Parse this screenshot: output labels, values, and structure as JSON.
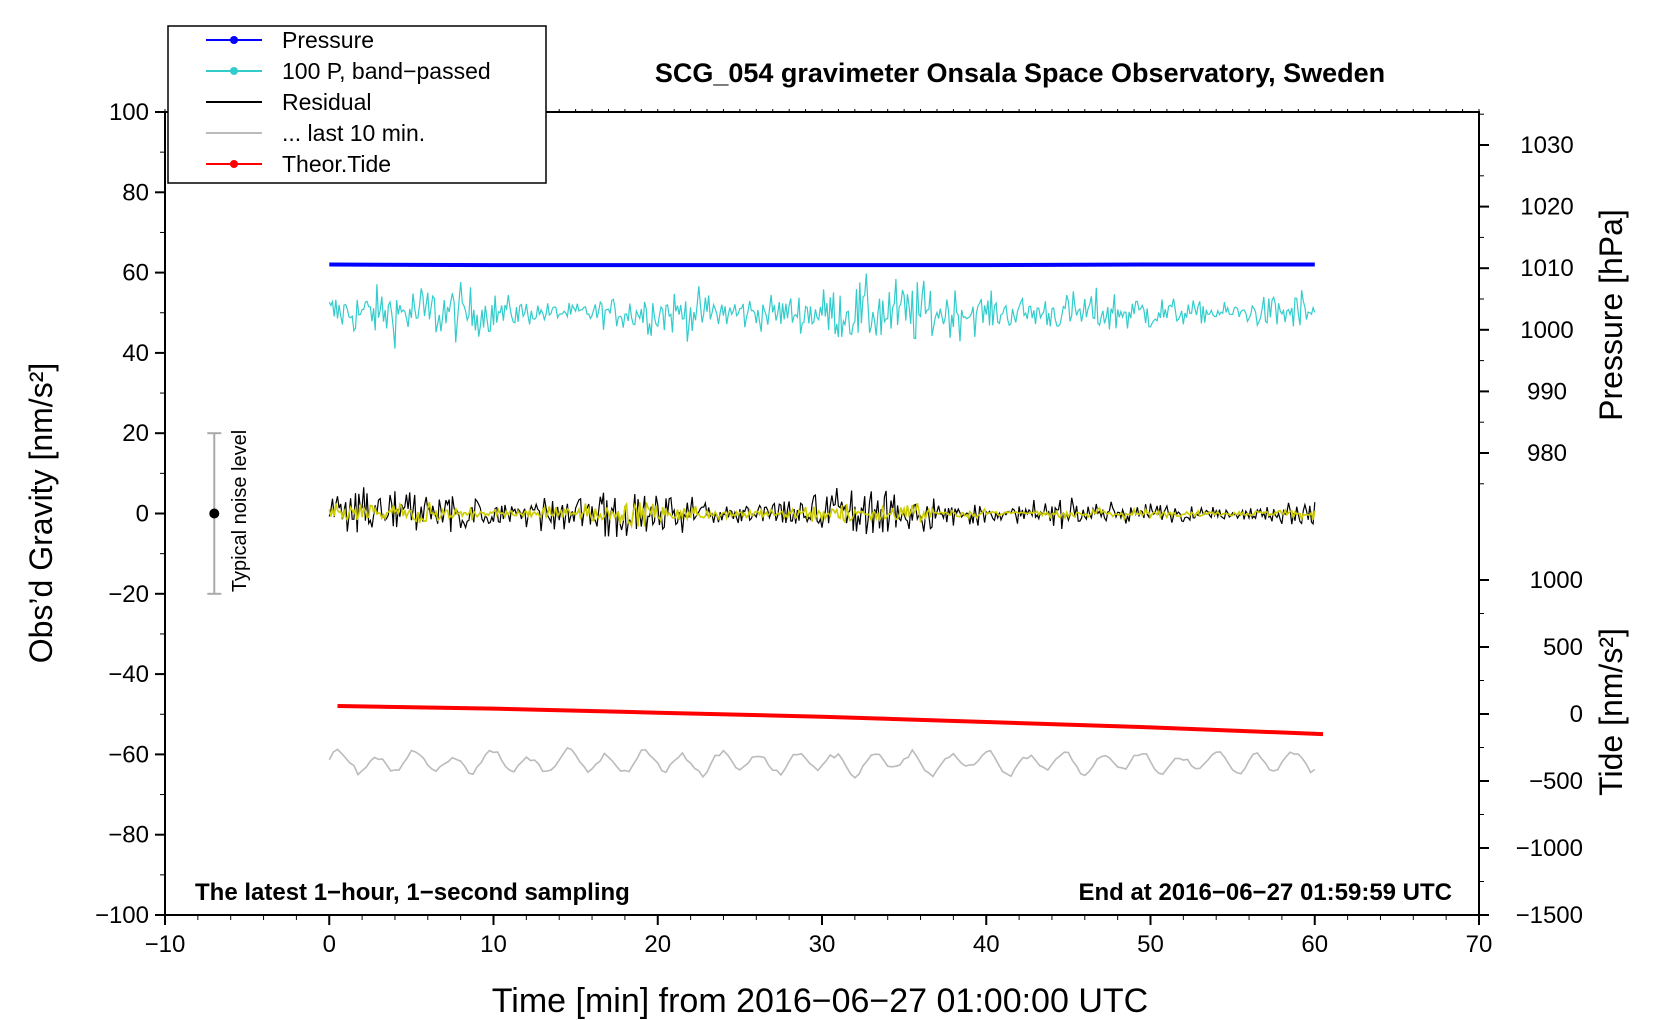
{
  "chart_data": {
    "type": "line",
    "title": "SCG_054 gravimeter Onsala Space Observatory, Sweden",
    "xlabel": "Time [min] from 2016−06−27 01:00:00 UTC",
    "ylabel_left": "Obs’d Gravity [nm/s²]",
    "ylabel_right_pressure": "Pressure [hPa]",
    "ylabel_right_tide": "Tide [nm/s²]",
    "note_left": "The latest 1−hour, 1−second sampling",
    "note_right": "End at 2016−06−27 01:59:59 UTC",
    "noise_label": "Typical noise level",
    "noise_bar": {
      "x": -7,
      "center": 0,
      "low": -20,
      "high": 20
    },
    "xlim": [
      -10,
      70
    ],
    "ylim": [
      -100,
      100
    ],
    "x_ticks": [
      "−10",
      "0",
      "10",
      "20",
      "30",
      "40",
      "50",
      "60",
      "70"
    ],
    "y_ticks": [
      "−100",
      "−80",
      "−60",
      "−40",
      "−20",
      "0",
      "20",
      "40",
      "60",
      "80",
      "100"
    ],
    "pressure_ticks": [
      "980",
      "990",
      "1000",
      "1010",
      "1020",
      "1030"
    ],
    "tide_ticks": [
      "−1500",
      "−1000",
      "−500",
      "0",
      "500",
      "1000"
    ],
    "pressure_axis": {
      "ylim": [
        971,
        1036
      ]
    },
    "tide_axis": {
      "ylim": [
        -1500,
        1000
      ]
    },
    "legend": {
      "position": "top-left",
      "entries": [
        {
          "label": "Pressure",
          "color": "#0000ff",
          "marker": true
        },
        {
          "label": "100 P, band−passed",
          "color": "#33cccc",
          "marker": true
        },
        {
          "label": "Residual",
          "color": "#000000",
          "marker": false
        },
        {
          "label": "... last 10 min.",
          "color": "#bbbbbb",
          "marker": false
        },
        {
          "label": "Theor.Tide",
          "color": "#ff0000",
          "marker": true
        }
      ]
    },
    "series": [
      {
        "name": "Pressure",
        "axis": "pressure",
        "color": "#0000ff",
        "x": [
          0,
          10,
          20,
          30,
          40,
          50,
          60
        ],
        "values": [
          1010.6,
          1010.5,
          1010.5,
          1010.5,
          1010.5,
          1010.6,
          1010.6
        ]
      },
      {
        "name": "100 P, band−passed",
        "axis": "left",
        "color": "#33cccc",
        "center": 50,
        "amplitude": 5,
        "peak_min": 36,
        "peak_max": 60
      },
      {
        "name": "Residual",
        "axis": "left",
        "color": "#000000",
        "center": 0,
        "amplitude": 4,
        "peak_min": -9,
        "peak_max": 12
      },
      {
        "name": "Residual (smoothed)",
        "axis": "left",
        "color": "#cccc00",
        "center": 0,
        "amplitude": 1.5
      },
      {
        "name": "... last 10 min.",
        "axis": "left",
        "color": "#bbbbbb",
        "center": -62,
        "amplitude": 2
      },
      {
        "name": "Theor.Tide",
        "axis": "tide",
        "color": "#ff0000",
        "x": [
          0.5,
          10,
          20,
          30,
          40,
          50,
          60.5
        ],
        "values": [
          60,
          40,
          10,
          -20,
          -60,
          -100,
          -150
        ]
      }
    ]
  }
}
